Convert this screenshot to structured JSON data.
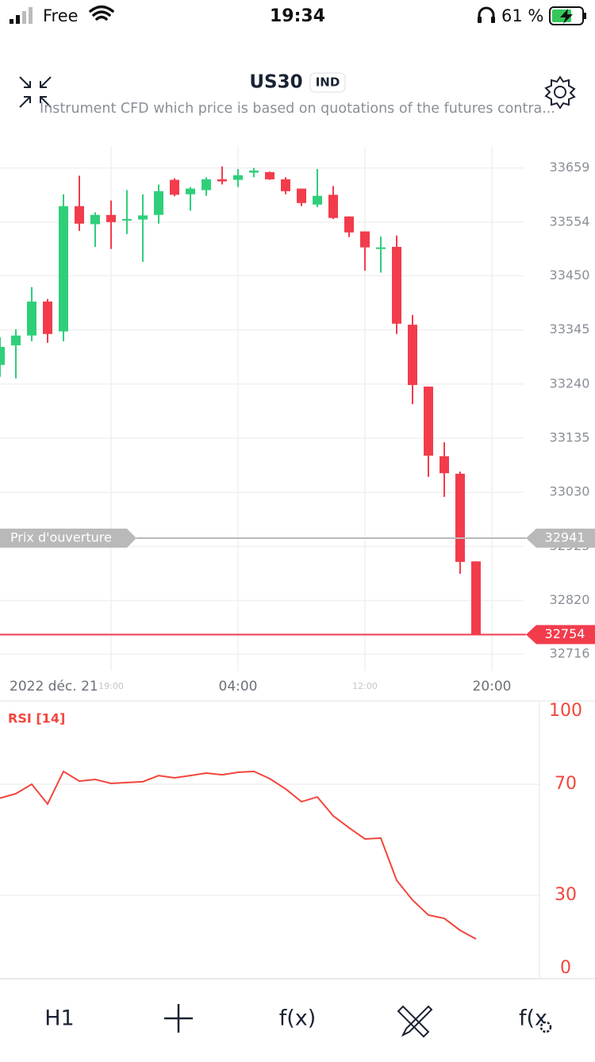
{
  "status_bar": {
    "carrier": "Free",
    "time": "19:34",
    "battery": "61 %"
  },
  "header": {
    "title": "US30",
    "badge": "IND",
    "subtitle": "Instrument CFD which price is based on quotations of the futures contra..."
  },
  "chart_data": [
    {
      "type": "candlestick",
      "date_label": "2022 déc. 21",
      "x": [
        0,
        1,
        2,
        3,
        4,
        5,
        6,
        7,
        8,
        9,
        10,
        11,
        12,
        13,
        14,
        15,
        16,
        17,
        18,
        19,
        20,
        21,
        22,
        23,
        24,
        25,
        26,
        27,
        28,
        29,
        30
      ],
      "open": [
        33277,
        33315,
        33334,
        33400,
        33342,
        33585,
        33550,
        33568,
        33557,
        33559,
        33568,
        33636,
        33608,
        33616,
        33637,
        33636,
        33650,
        33651,
        33637,
        33619,
        33588,
        33607,
        33565,
        33536,
        33502,
        33506,
        33355,
        33235,
        33100,
        33066,
        32896
      ],
      "high": [
        33331,
        33346,
        33428,
        33405,
        33608,
        33644,
        33573,
        33596,
        33616,
        33608,
        33627,
        33639,
        33622,
        33641,
        33662,
        33657,
        33659,
        33652,
        33641,
        33619,
        33657,
        33624,
        33565,
        33536,
        33526,
        33528,
        33374,
        33235,
        33127,
        33070,
        32896
      ],
      "low": [
        33254,
        33251,
        33323,
        33320,
        33323,
        33537,
        33506,
        33502,
        33531,
        33477,
        33551,
        33604,
        33576,
        33605,
        33627,
        33622,
        33641,
        33636,
        33608,
        33585,
        33583,
        33560,
        33525,
        33460,
        33456,
        33337,
        33201,
        33060,
        33021,
        32872,
        32754
      ],
      "close": [
        33312,
        33334,
        33400,
        33337,
        33585,
        33551,
        33568,
        33554,
        33560,
        33567,
        33614,
        33607,
        33619,
        33637,
        33633,
        33645,
        33654,
        33637,
        33614,
        33591,
        33605,
        33562,
        33534,
        33505,
        33505,
        33357,
        33238,
        33101,
        33067,
        32895,
        32754
      ],
      "up_color": "#2fcf7a",
      "down_color": "#f23c4c",
      "xlim": [
        0,
        33
      ],
      "ylim": [
        32684,
        33700
      ],
      "xticks": [
        {
          "value": 7,
          "label": "19:00"
        },
        {
          "value": 15,
          "label": "04:00"
        },
        {
          "value": 23,
          "label": "12:00"
        },
        {
          "value": 31,
          "label": "20:00"
        }
      ],
      "yticks": [
        33659,
        33554,
        33450,
        33345,
        33240,
        33135,
        33030,
        32925,
        32820,
        32716
      ],
      "grid": true,
      "price_lines": [
        {
          "label": "Prix d'ouverture",
          "value": 32941,
          "color": "#b9b9b9"
        },
        {
          "value": 32754,
          "color": "#f23c4c"
        }
      ]
    },
    {
      "type": "line",
      "title": "RSI [14]",
      "color": "#f2463c",
      "x": [
        0,
        1,
        2,
        3,
        4,
        5,
        6,
        7,
        8,
        9,
        10,
        11,
        12,
        13,
        14,
        15,
        16,
        17,
        18,
        19,
        20,
        21,
        22,
        23,
        24,
        25,
        26,
        27,
        28,
        29,
        30
      ],
      "values": [
        65,
        66.6,
        70,
        62.9,
        74.6,
        71.1,
        71.7,
        70.3,
        70.6,
        70.9,
        73.1,
        72.3,
        73.1,
        74,
        73.4,
        74.3,
        74.6,
        72,
        68.3,
        63.7,
        65.4,
        58.6,
        54.3,
        50.3,
        50.6,
        35.4,
        28.3,
        22.9,
        21.7,
        17.4,
        14.3
      ],
      "xlim": [
        0,
        33
      ],
      "ylim": [
        0,
        100
      ],
      "yticks": [
        100,
        70,
        30,
        0
      ],
      "grid": true
    }
  ],
  "toolbar": {
    "timeframe": "H1",
    "indicators": "f(x)",
    "indicator_settings": "f(x"
  }
}
